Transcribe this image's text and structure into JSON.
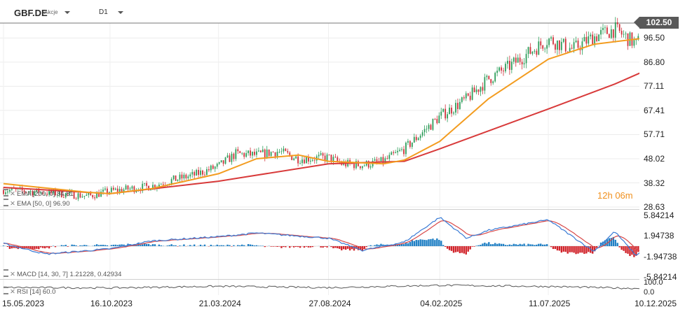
{
  "header": {
    "symbol": "GBF.DE",
    "security_type": "Akcje",
    "timeframe": "D1"
  },
  "price_panel": {
    "last_price": "102.50",
    "countdown_hours": "12h",
    "countdown_minutes": "06m",
    "y_tick_labels": [
      "96.50",
      "86.80",
      "77.11",
      "67.41",
      "57.71",
      "48.02",
      "38.32",
      "28.63"
    ]
  },
  "indicators": {
    "ema200_label": "EMA [200, 0] 84.81",
    "ema50_label": "EMA [50, 0] 96.90",
    "macd_label": "MACD [14, 30, 7] 1.21228, 0.42934",
    "rsi_label": "RSI [14] 60.0",
    "macd_y_tick_labels": [
      "5.84214",
      "1.94738",
      "-1.94738",
      "-5.84214"
    ],
    "rsi_y_tick_labels": [
      "100.0",
      "0.0"
    ]
  },
  "x_tick_labels": [
    "15.05.2023",
    "16.10.2023",
    "21.03.2024",
    "27.08.2024",
    "04.02.2025",
    "11.07.2025",
    "10.12.2025"
  ],
  "colors": {
    "up": "#2e9e5b",
    "down": "#d0303a",
    "ema50": "#f39c1f",
    "ema200": "#d83a3a",
    "macd_line": "#3a7bd5",
    "signal_line": "#d84848",
    "hist_pos": "#1f7fc4",
    "hist_neg": "#d1232a",
    "rsi": "#555555"
  },
  "chart_data": [
    {
      "type": "candlestick",
      "title": "GBF.DE",
      "x_range": [
        "15.05.2023",
        "10.12.2025"
      ],
      "ylim": [
        28.63,
        102.5
      ],
      "close_series": [
        [
          "15.05.2023",
          35.5
        ],
        [
          "15.07.2023",
          34.5
        ],
        [
          "15.09.2023",
          33.0
        ],
        [
          "16.10.2023",
          35.0
        ],
        [
          "15.12.2023",
          37.0
        ],
        [
          "15.01.2024",
          39.5
        ],
        [
          "15.02.2024",
          41.5
        ],
        [
          "21.03.2024",
          45.0
        ],
        [
          "15.04.2024",
          50.0
        ],
        [
          "15.05.2024",
          49.5
        ],
        [
          "15.06.2024",
          51.0
        ],
        [
          "15.07.2024",
          48.0
        ],
        [
          "27.08.2024",
          48.5
        ],
        [
          "15.09.2024",
          46.0
        ],
        [
          "15.10.2024",
          45.5
        ],
        [
          "15.11.2024",
          47.0
        ],
        [
          "15.12.2024",
          52.0
        ],
        [
          "04.02.2025",
          65.0
        ],
        [
          "15.03.2025",
          72.0
        ],
        [
          "15.04.2025",
          80.0
        ],
        [
          "15.05.2025",
          85.0
        ],
        [
          "11.07.2025",
          96.0
        ],
        [
          "15.08.2025",
          92.0
        ],
        [
          "15.09.2025",
          97.0
        ],
        [
          "15.10.2025",
          100.0
        ],
        [
          "15.11.2025",
          94.0
        ],
        [
          "10.12.2025",
          102.5
        ]
      ]
    },
    {
      "type": "line",
      "title": "EMA [50, 0]",
      "value": 96.9,
      "series": [
        [
          "15.05.2023",
          38.0
        ],
        [
          "15.09.2023",
          34.5
        ],
        [
          "16.10.2023",
          34.0
        ],
        [
          "15.12.2023",
          36.0
        ],
        [
          "21.03.2024",
          42.0
        ],
        [
          "15.05.2024",
          48.0
        ],
        [
          "15.07.2024",
          49.5
        ],
        [
          "27.08.2024",
          47.0
        ],
        [
          "15.11.2024",
          46.0
        ],
        [
          "15.12.2024",
          47.5
        ],
        [
          "04.02.2025",
          55.0
        ],
        [
          "15.04.2025",
          72.0
        ],
        [
          "11.07.2025",
          88.0
        ],
        [
          "15.09.2025",
          94.0
        ],
        [
          "10.12.2025",
          96.9
        ]
      ]
    },
    {
      "type": "line",
      "title": "EMA [200, 0]",
      "value": 84.81,
      "series": [
        [
          "15.05.2023",
          36.5
        ],
        [
          "16.10.2023",
          34.0
        ],
        [
          "21.03.2024",
          39.0
        ],
        [
          "27.08.2024",
          46.0
        ],
        [
          "15.12.2024",
          47.0
        ],
        [
          "04.02.2025",
          52.0
        ],
        [
          "11.07.2025",
          68.0
        ],
        [
          "15.10.2025",
          78.0
        ],
        [
          "10.12.2025",
          84.81
        ]
      ]
    },
    {
      "type": "line",
      "title": "MACD [14, 30, 7]",
      "ylim": [
        -5.84214,
        5.84214
      ],
      "values": {
        "macd": 1.21228,
        "signal": 0.42934
      },
      "series": [
        [
          "15.05.2023",
          0.5
        ],
        [
          "15.07.2023",
          -1.5
        ],
        [
          "16.10.2023",
          -0.5
        ],
        [
          "15.12.2023",
          1.0
        ],
        [
          "21.03.2024",
          1.8
        ],
        [
          "15.05.2024",
          2.5
        ],
        [
          "27.08.2024",
          1.5
        ],
        [
          "15.10.2024",
          -0.8
        ],
        [
          "15.12.2024",
          0.8
        ],
        [
          "04.02.2025",
          5.5
        ],
        [
          "15.03.2025",
          1.5
        ],
        [
          "15.04.2025",
          3.0
        ],
        [
          "11.07.2025",
          5.0
        ],
        [
          "15.09.2025",
          -1.0
        ],
        [
          "15.10.2025",
          2.8
        ],
        [
          "15.11.2025",
          -1.8
        ],
        [
          "10.12.2025",
          1.21228
        ]
      ]
    },
    {
      "type": "line",
      "title": "RSI [14]",
      "ylim": [
        0,
        100
      ],
      "value": 60.0,
      "series": [
        [
          "15.05.2023",
          50
        ],
        [
          "16.10.2023",
          45
        ],
        [
          "21.03.2024",
          62
        ],
        [
          "27.08.2024",
          48
        ],
        [
          "04.02.2025",
          72
        ],
        [
          "11.07.2025",
          60
        ],
        [
          "15.11.2025",
          40
        ],
        [
          "10.12.2025",
          60
        ]
      ]
    }
  ]
}
